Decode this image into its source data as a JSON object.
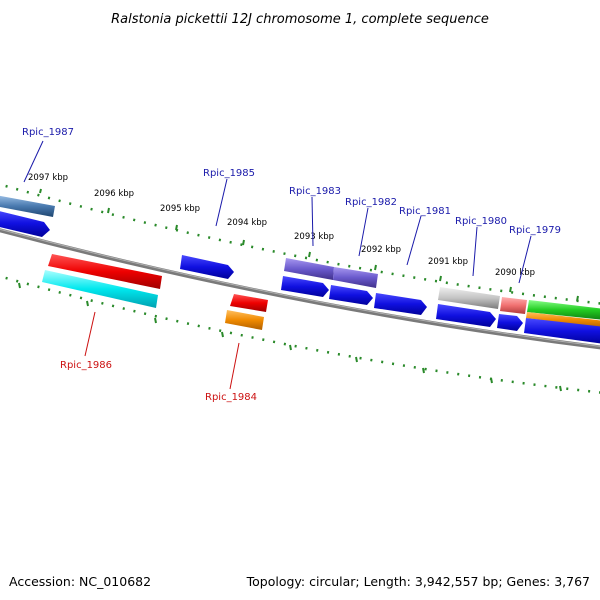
{
  "title": "Ralstonia pickettii 12J chromosome 1, complete sequence",
  "accession": "Accession: NC_010682",
  "topology": "Topology: circular; Length: 3,942,557 bp; Genes: 3,767",
  "kbp_labels": [
    "2097 kbp",
    "2096 kbp",
    "2095 kbp",
    "2094 kbp",
    "2093 kbp",
    "2092 kbp",
    "2091 kbp",
    "2090 kbp"
  ],
  "gene_labels": {
    "rpic_1987": "Rpic_1987",
    "rpic_1986": "Rpic_1986",
    "rpic_1985": "Rpic_1985",
    "rpic_1984": "Rpic_1984",
    "rpic_1983": "Rpic_1983",
    "rpic_1982": "Rpic_1982",
    "rpic_1981": "Rpic_1981",
    "rpic_1980": "Rpic_1980",
    "rpic_1979": "Rpic_1979"
  },
  "colors": {
    "backbone": "#808080",
    "tick": "#2a8a2a",
    "blue": "#1010e0",
    "red": "#ee0000",
    "cyan": "#00e8ee",
    "orange": "#f08a00",
    "purple": "#6a5acd",
    "steel": "#4a7ab0",
    "gray": "#b8b8b8",
    "salmon": "#f07070",
    "green": "#22cc22"
  }
}
